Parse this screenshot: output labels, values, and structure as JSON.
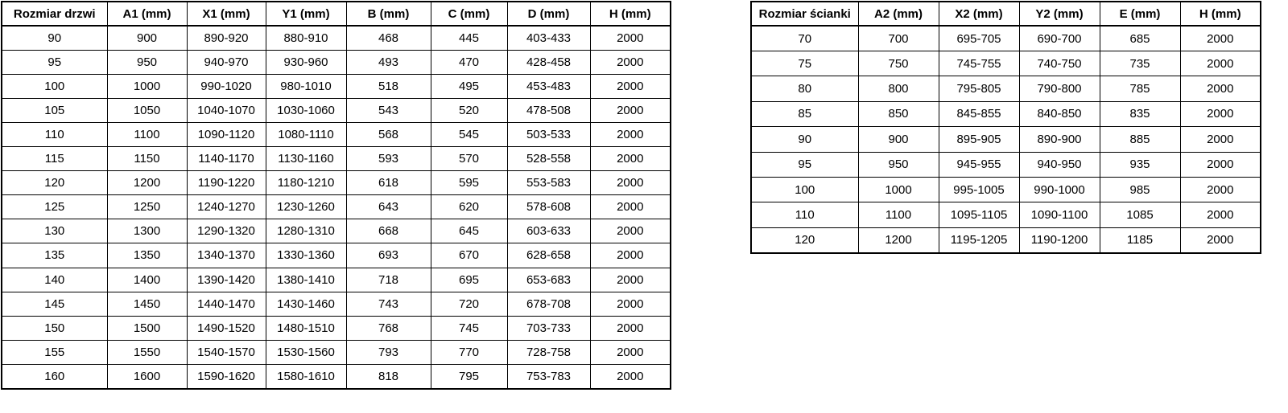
{
  "left_table": {
    "name": "door-size-table",
    "headers": [
      "Rozmiar drzwi",
      "A1 (mm)",
      "X1 (mm)",
      "Y1 (mm)",
      "B (mm)",
      "C (mm)",
      "D (mm)",
      "H (mm)"
    ],
    "rows": [
      [
        "90",
        "900",
        "890-920",
        "880-910",
        "468",
        "445",
        "403-433",
        "2000"
      ],
      [
        "95",
        "950",
        "940-970",
        "930-960",
        "493",
        "470",
        "428-458",
        "2000"
      ],
      [
        "100",
        "1000",
        "990-1020",
        "980-1010",
        "518",
        "495",
        "453-483",
        "2000"
      ],
      [
        "105",
        "1050",
        "1040-1070",
        "1030-1060",
        "543",
        "520",
        "478-508",
        "2000"
      ],
      [
        "110",
        "1100",
        "1090-1120",
        "1080-1110",
        "568",
        "545",
        "503-533",
        "2000"
      ],
      [
        "115",
        "1150",
        "1140-1170",
        "1130-1160",
        "593",
        "570",
        "528-558",
        "2000"
      ],
      [
        "120",
        "1200",
        "1190-1220",
        "1180-1210",
        "618",
        "595",
        "553-583",
        "2000"
      ],
      [
        "125",
        "1250",
        "1240-1270",
        "1230-1260",
        "643",
        "620",
        "578-608",
        "2000"
      ],
      [
        "130",
        "1300",
        "1290-1320",
        "1280-1310",
        "668",
        "645",
        "603-633",
        "2000"
      ],
      [
        "135",
        "1350",
        "1340-1370",
        "1330-1360",
        "693",
        "670",
        "628-658",
        "2000"
      ],
      [
        "140",
        "1400",
        "1390-1420",
        "1380-1410",
        "718",
        "695",
        "653-683",
        "2000"
      ],
      [
        "145",
        "1450",
        "1440-1470",
        "1430-1460",
        "743",
        "720",
        "678-708",
        "2000"
      ],
      [
        "150",
        "1500",
        "1490-1520",
        "1480-1510",
        "768",
        "745",
        "703-733",
        "2000"
      ],
      [
        "155",
        "1550",
        "1540-1570",
        "1530-1560",
        "793",
        "770",
        "728-758",
        "2000"
      ],
      [
        "160",
        "1600",
        "1590-1620",
        "1580-1610",
        "818",
        "795",
        "753-783",
        "2000"
      ]
    ]
  },
  "right_table": {
    "name": "wall-panel-size-table",
    "headers": [
      "Rozmiar ścianki",
      "A2 (mm)",
      "X2 (mm)",
      "Y2 (mm)",
      "E (mm)",
      "H (mm)"
    ],
    "rows": [
      [
        "70",
        "700",
        "695-705",
        "690-700",
        "685",
        "2000"
      ],
      [
        "75",
        "750",
        "745-755",
        "740-750",
        "735",
        "2000"
      ],
      [
        "80",
        "800",
        "795-805",
        "790-800",
        "785",
        "2000"
      ],
      [
        "85",
        "850",
        "845-855",
        "840-850",
        "835",
        "2000"
      ],
      [
        "90",
        "900",
        "895-905",
        "890-900",
        "885",
        "2000"
      ],
      [
        "95",
        "950",
        "945-955",
        "940-950",
        "935",
        "2000"
      ],
      [
        "100",
        "1000",
        "995-1005",
        "990-1000",
        "985",
        "2000"
      ],
      [
        "110",
        "1100",
        "1095-1105",
        "1090-1100",
        "1085",
        "2000"
      ],
      [
        "120",
        "1200",
        "1195-1205",
        "1190-1200",
        "1185",
        "2000"
      ]
    ]
  },
  "colors": {
    "border": "#000000",
    "text": "#000000",
    "background": "#ffffff"
  }
}
